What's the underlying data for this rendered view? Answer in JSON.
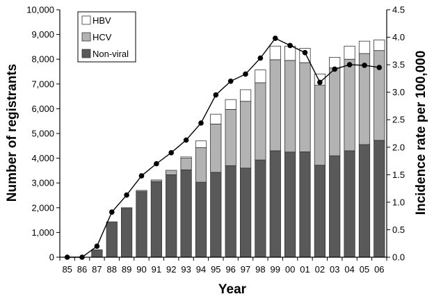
{
  "chart_data": {
    "type": "bar",
    "stacked": true,
    "categories": [
      "85",
      "86",
      "87",
      "88",
      "89",
      "90",
      "91",
      "92",
      "93",
      "94",
      "95",
      "96",
      "97",
      "98",
      "99",
      "00",
      "01",
      "02",
      "03",
      "04",
      "05",
      "06"
    ],
    "xlabel": "Year",
    "ylabel": "Number of registrants",
    "y2label": "Incidence rate per 100,000",
    "ylim": [
      0,
      10000
    ],
    "y2lim": [
      0,
      4.5
    ],
    "yticks": [
      0,
      1000,
      2000,
      3000,
      4000,
      5000,
      6000,
      7000,
      8000,
      9000,
      10000
    ],
    "ytick_labels": [
      "0",
      "1,000",
      "2,000",
      "3,000",
      "4,000",
      "5,000",
      "6,000",
      "7,000",
      "8,000",
      "9,000",
      "10,000"
    ],
    "y2ticks": [
      0,
      0.5,
      1.0,
      1.5,
      2.0,
      2.5,
      3.0,
      3.5,
      4.0,
      4.5
    ],
    "y2tick_labels": [
      "0.0",
      "0.5",
      "1.0",
      "1.5",
      "2.0",
      "2.5",
      "3.0",
      "3.5",
      "4.0",
      "4.5"
    ],
    "grid": false,
    "legend_position": "top-left",
    "series": [
      {
        "name": "Non-viral",
        "color": "#595959",
        "values": [
          0,
          0,
          300,
          1430,
          1970,
          2650,
          3050,
          3330,
          3530,
          3030,
          3430,
          3700,
          3600,
          3930,
          4300,
          4250,
          4260,
          3720,
          4100,
          4300,
          4550,
          4720
        ]
      },
      {
        "name": "HCV",
        "color": "#b3b3b3",
        "values": [
          0,
          0,
          0,
          0,
          30,
          50,
          70,
          180,
          470,
          1400,
          1950,
          2270,
          2700,
          3120,
          3680,
          3700,
          3600,
          3230,
          3550,
          3700,
          3680,
          3630
        ]
      },
      {
        "name": "HBV",
        "color": "#ffffff",
        "values": [
          0,
          0,
          0,
          0,
          0,
          0,
          0,
          0,
          50,
          270,
          400,
          400,
          470,
          520,
          550,
          580,
          580,
          450,
          430,
          530,
          500,
          430
        ]
      }
    ],
    "line": {
      "name": "Incidence rate per 100,000",
      "axis": "y2",
      "color": "#000000",
      "values": [
        0.0,
        0.0,
        0.2,
        0.82,
        1.13,
        1.48,
        1.7,
        1.9,
        2.13,
        2.44,
        2.95,
        3.2,
        3.33,
        3.62,
        3.98,
        3.85,
        3.72,
        3.18,
        3.42,
        3.5,
        3.49,
        3.45
      ]
    }
  }
}
